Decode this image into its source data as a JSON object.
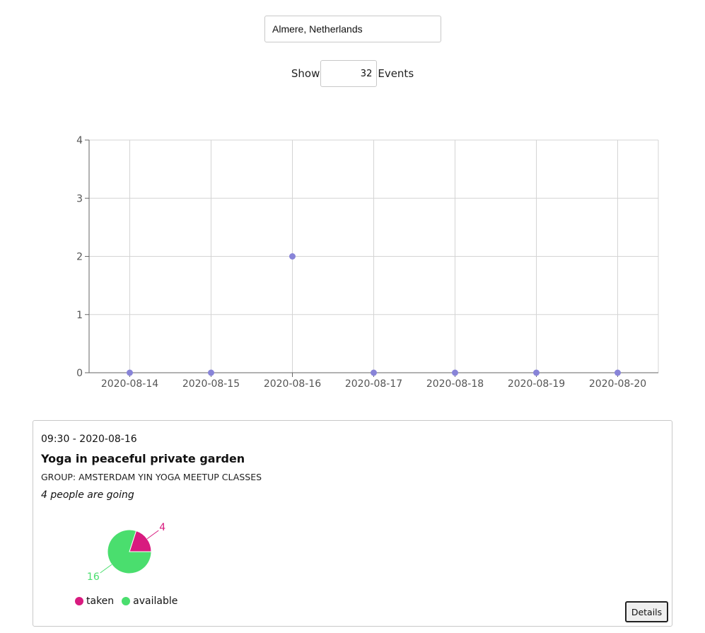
{
  "search": {
    "location_value": "Almere, Netherlands"
  },
  "show": {
    "prefix": "Show",
    "count_value": "32",
    "suffix": "Events"
  },
  "chart_data": {
    "type": "scatter",
    "categories": [
      "2020-08-14",
      "2020-08-15",
      "2020-08-16",
      "2020-08-17",
      "2020-08-18",
      "2020-08-19",
      "2020-08-20"
    ],
    "values": [
      0,
      0,
      2,
      0,
      0,
      0,
      0
    ],
    "ylim": [
      0,
      4
    ],
    "yticks": [
      "0",
      "1",
      "2",
      "3",
      "4"
    ],
    "grid": true,
    "point_color": "#8884d8",
    "title": "",
    "xlabel": "",
    "ylabel": ""
  },
  "event": {
    "time": "09:30 - 2020-08-16",
    "title": "Yoga in peaceful private garden",
    "group": "GROUP: AMSTERDAM YIN YOGA MEETUP CLASSES",
    "going": "4 people are going",
    "pie": {
      "slices": [
        {
          "name": "taken",
          "value": 4,
          "color": "#d81b7f"
        },
        {
          "name": "available",
          "value": 16,
          "color": "#4ade6e"
        }
      ]
    },
    "legend": {
      "taken": "taken",
      "available": "available"
    },
    "details_label": "Details"
  }
}
